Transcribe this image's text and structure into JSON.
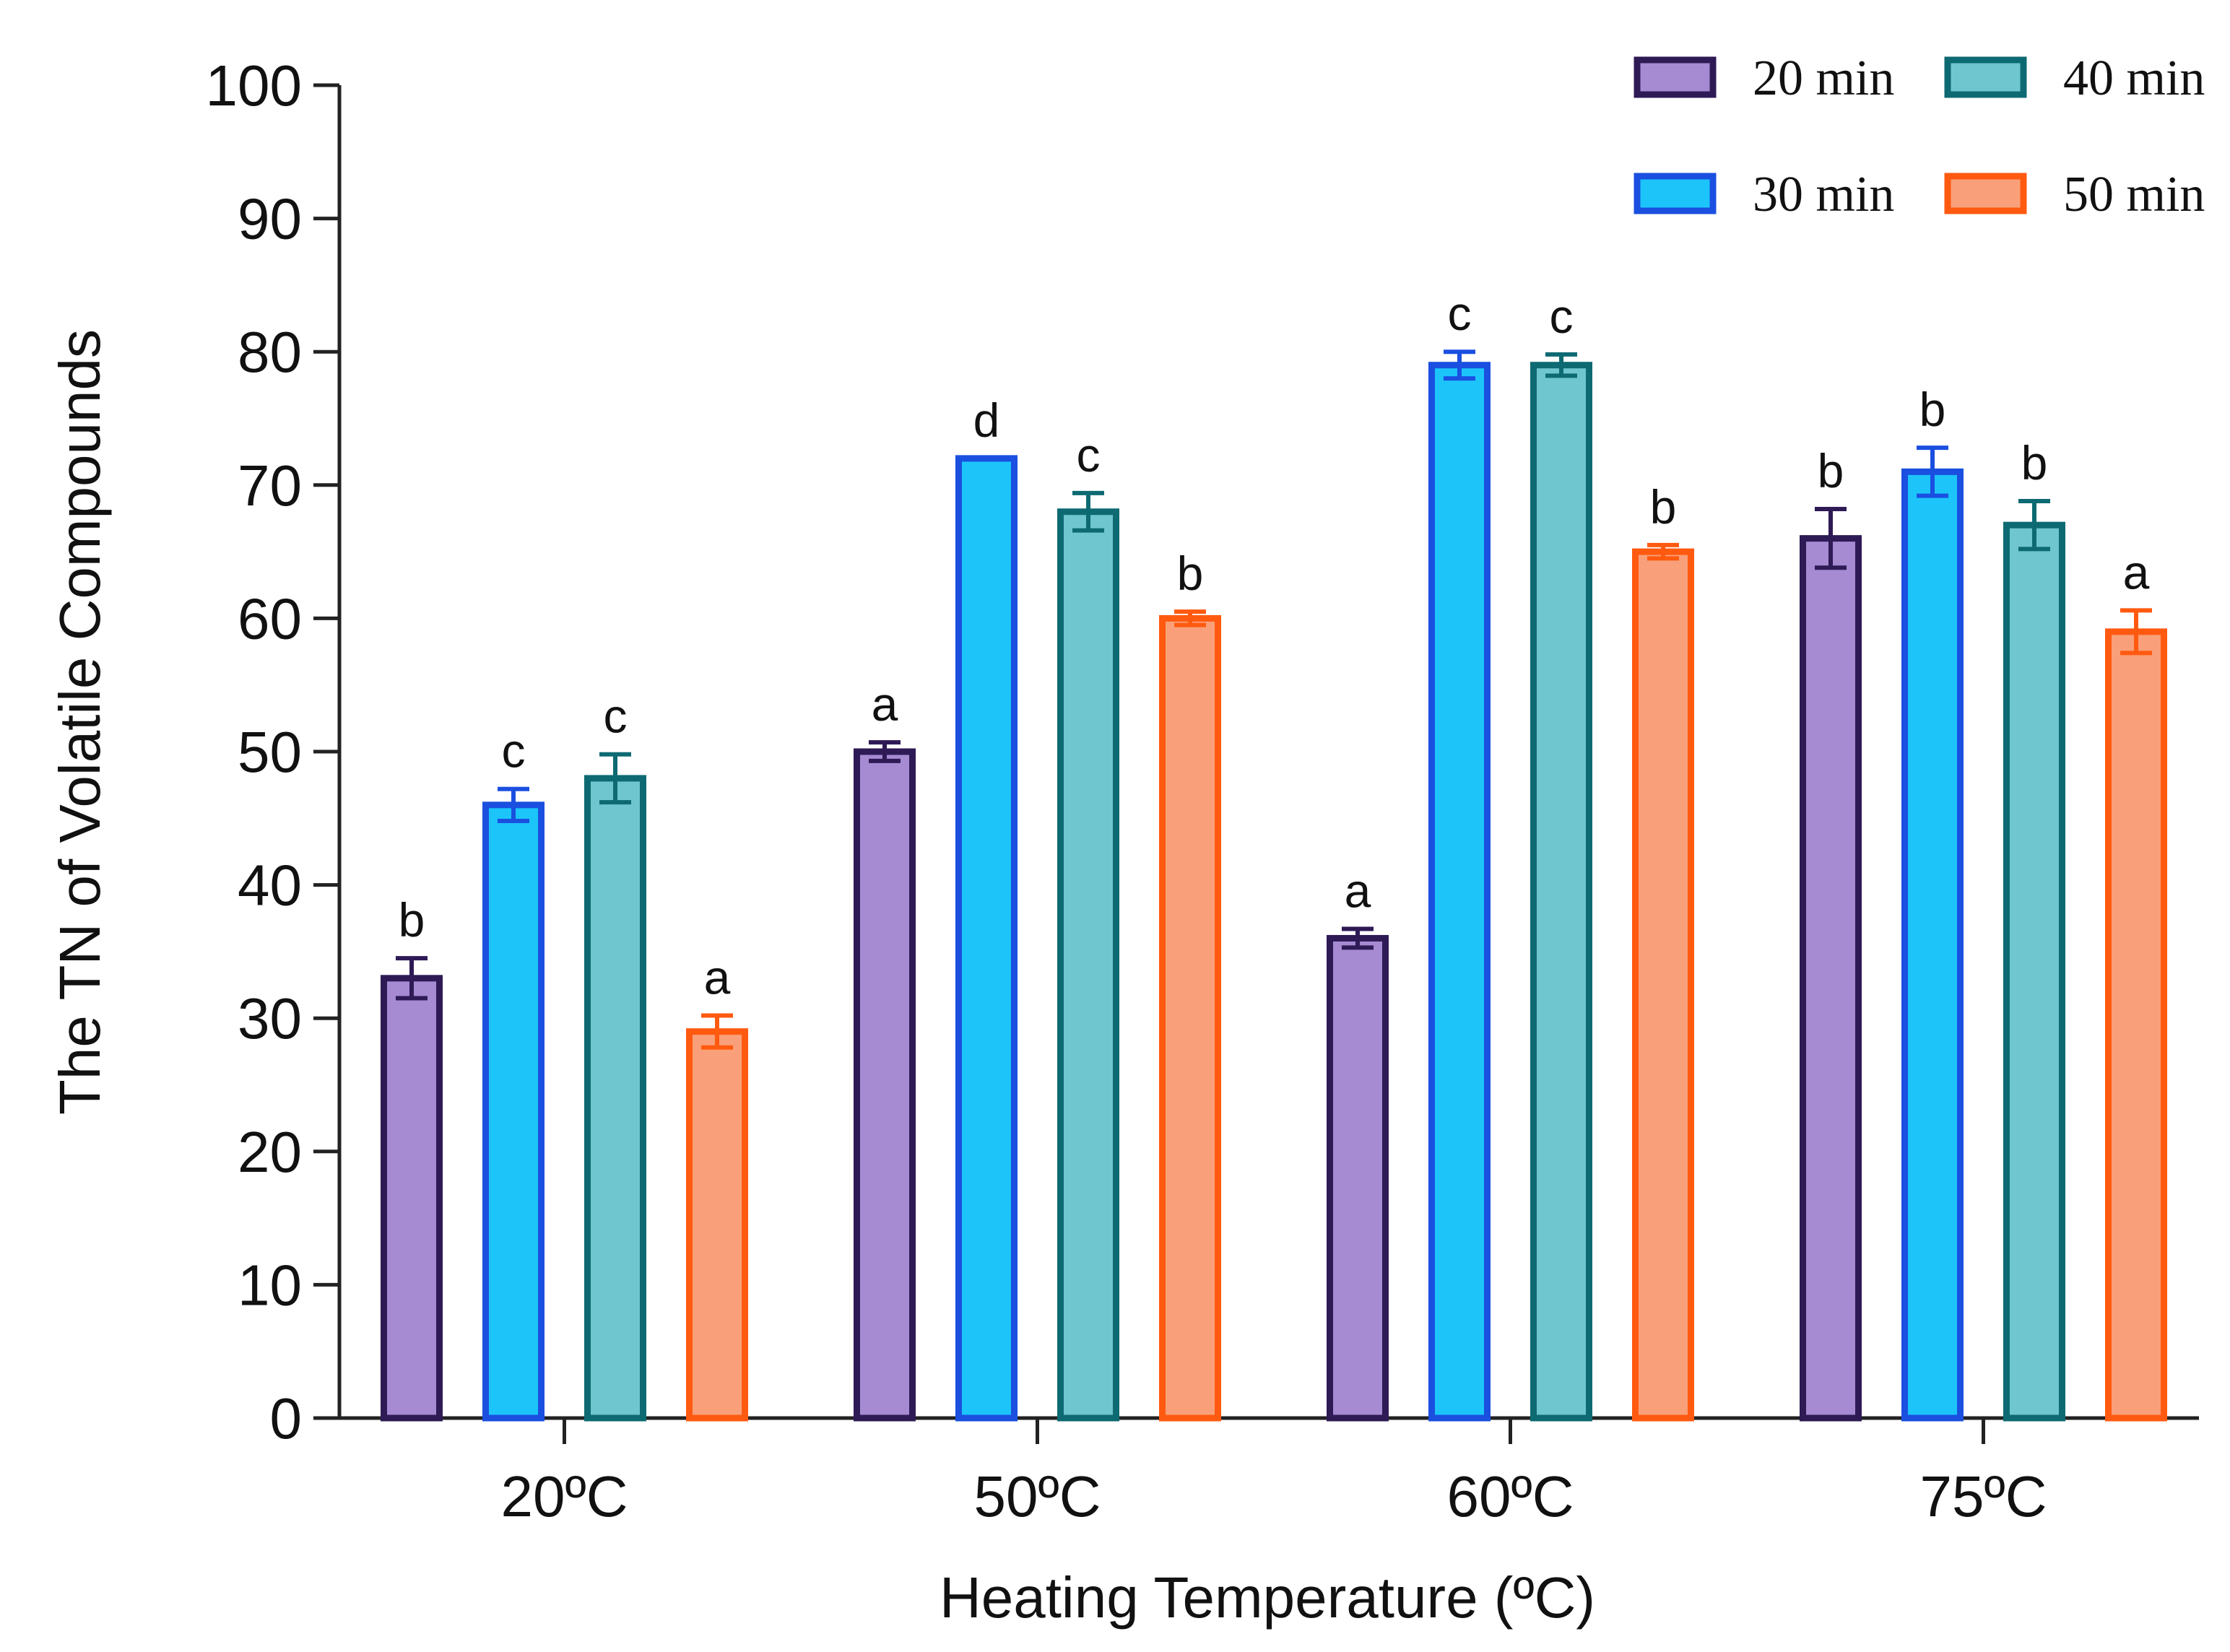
{
  "chart_data": {
    "type": "bar",
    "title": "",
    "xlabel": "Heating Temperature (ºC)",
    "ylabel": "The TN of Volatile Compounds",
    "ylim": [
      0,
      100
    ],
    "yticks": [
      "0",
      "10",
      "20",
      "30",
      "40",
      "50",
      "60",
      "70",
      "80",
      "90",
      "100"
    ],
    "categories": [
      "20ºC",
      "50ºC",
      "60ºC",
      "75ºC"
    ],
    "series": [
      {
        "name": "20 min",
        "fill": "#a68bd3",
        "stroke": "#2e1a55",
        "values": [
          33,
          50,
          36,
          66
        ],
        "errors": [
          1.5,
          0.7,
          0.7,
          2.2
        ],
        "letters": [
          "b",
          "a",
          "a",
          "b"
        ]
      },
      {
        "name": "30 min",
        "fill": "#1cc4fa",
        "stroke": "#1a4fe0",
        "values": [
          46,
          72,
          79,
          71
        ],
        "errors": [
          1.2,
          0.0,
          1.0,
          1.8
        ],
        "letters": [
          "c",
          "d",
          "c",
          "b"
        ]
      },
      {
        "name": "40 min",
        "fill": "#6fc6cf",
        "stroke": "#0e6a72",
        "values": [
          48,
          68,
          79,
          67
        ],
        "errors": [
          1.8,
          1.4,
          0.8,
          1.8
        ],
        "letters": [
          "c",
          "c",
          "c",
          "b"
        ]
      },
      {
        "name": "50 min",
        "fill": "#f9a07a",
        "stroke": "#ff5a10",
        "values": [
          29,
          60,
          65,
          59
        ],
        "errors": [
          1.2,
          0.5,
          0.5,
          1.6
        ],
        "letters": [
          "a",
          "b",
          "b",
          "a"
        ]
      }
    ],
    "legend": {
      "position": "top-right",
      "columns": 2
    },
    "grid": false
  }
}
